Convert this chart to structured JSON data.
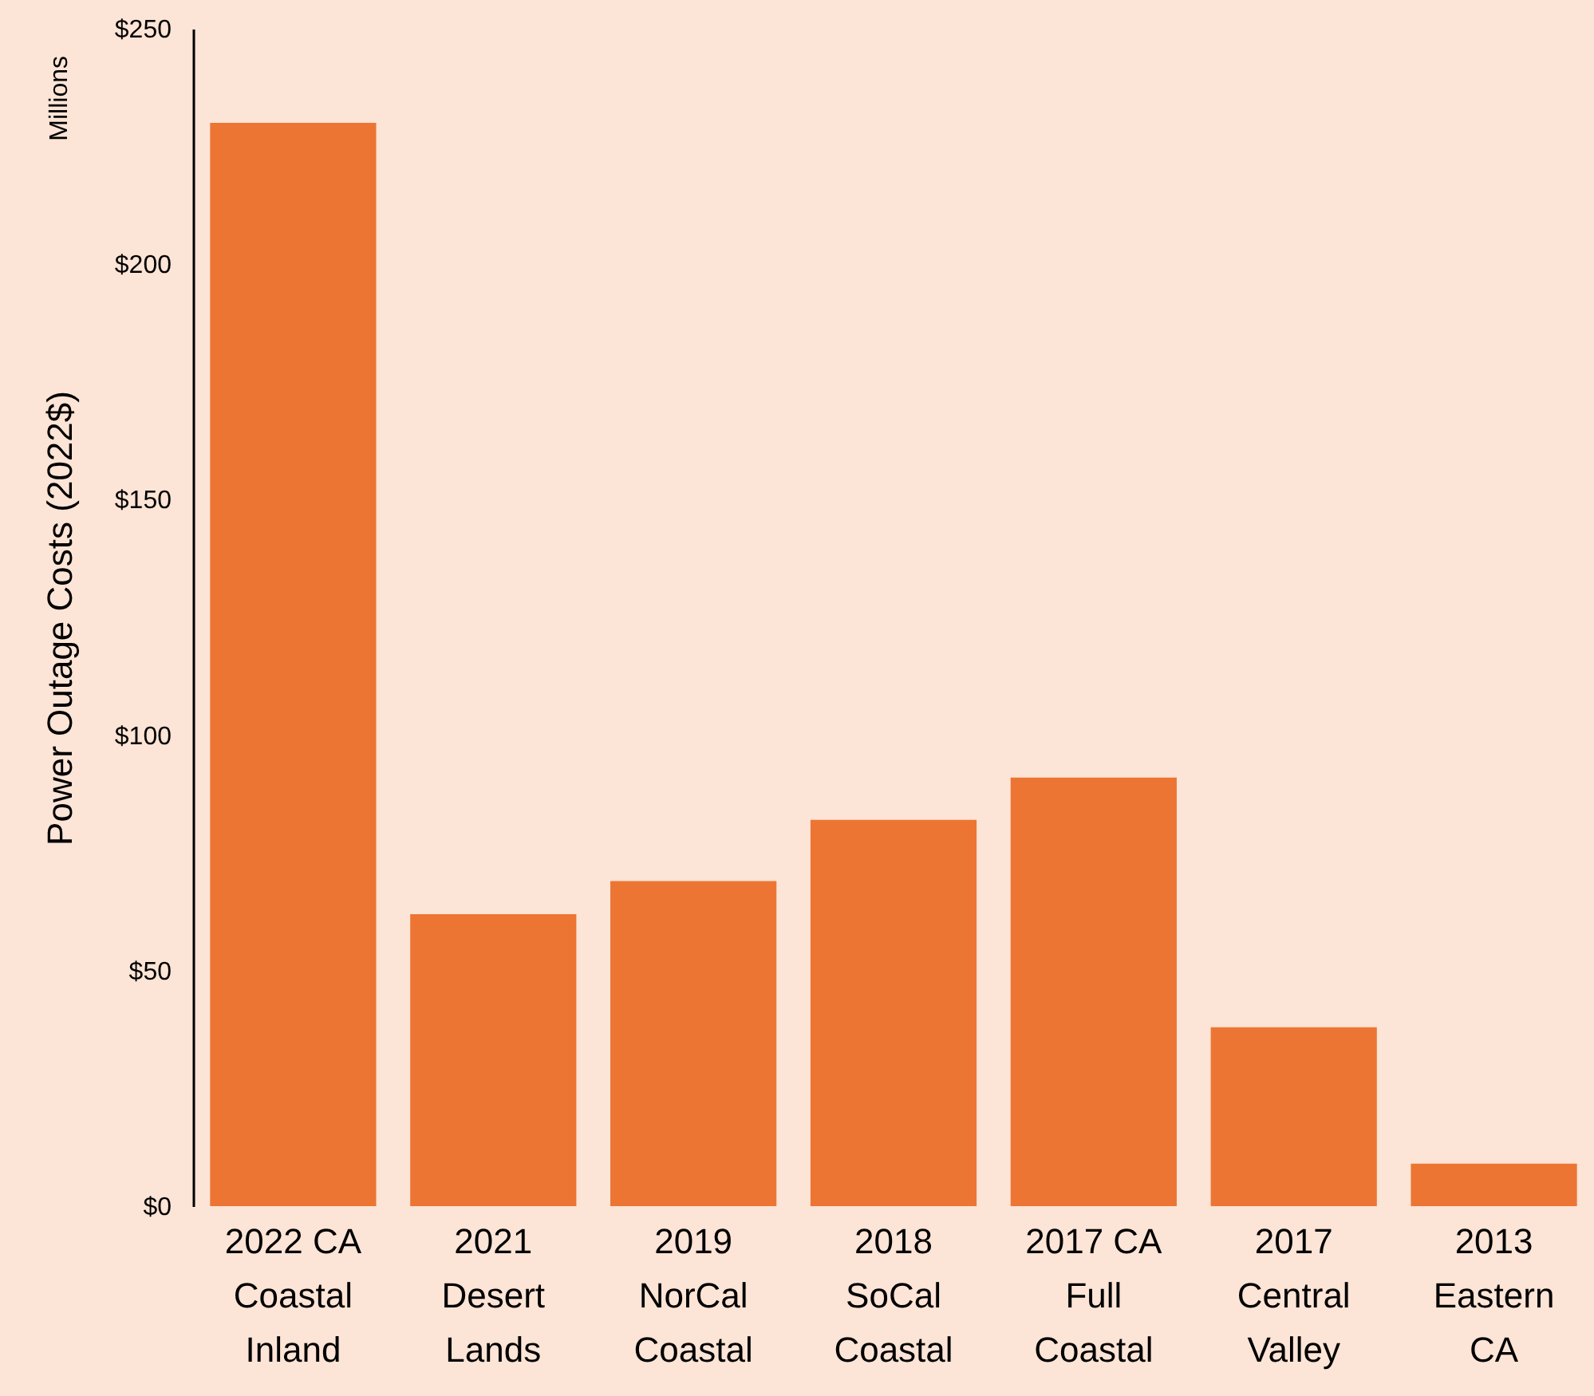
{
  "chart_data": {
    "type": "bar",
    "ylabel": "Power Outage Costs (2022$)",
    "annotations": [
      "Millions"
    ],
    "categories": [
      "2022 CA Coastal Inland",
      "2021 Desert Lands",
      "2019 NorCal Coastal",
      "2018 SoCal Coastal",
      "2017 CA Full Coastal",
      "2017 Central Valley",
      "2013 Eastern CA"
    ],
    "values": [
      230,
      62,
      69,
      82,
      91,
      38,
      9
    ],
    "color": "#ed7534",
    "ylim": [
      0,
      250
    ],
    "yticks": [
      {
        "value": 0,
        "label": "$0"
      },
      {
        "value": 50,
        "label": "$50"
      },
      {
        "value": 100,
        "label": "$100"
      },
      {
        "value": 150,
        "label": "$150"
      },
      {
        "value": 200,
        "label": "$200"
      },
      {
        "value": 250,
        "label": "$250"
      }
    ],
    "grid": false
  }
}
